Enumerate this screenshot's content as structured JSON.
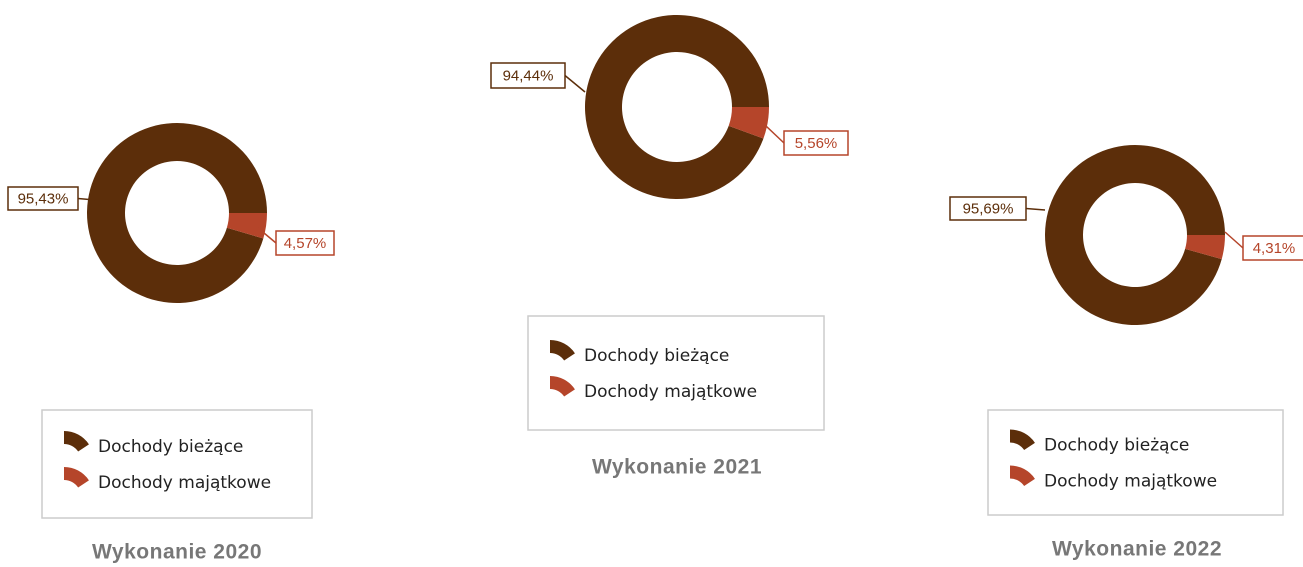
{
  "chart_data": [
    {
      "type": "donut",
      "title": "Wykonanie 2020",
      "categories": [
        "Dochody bieżące",
        "Dochody majątkowe"
      ],
      "values": [
        95.43,
        4.57
      ],
      "value_labels": [
        "95,43%",
        "4,57%"
      ],
      "colors": [
        "#5c2e0a",
        "#b5452a"
      ]
    },
    {
      "type": "donut",
      "title": "Wykonanie 2021",
      "categories": [
        "Dochody bieżące",
        "Dochody majątkowe"
      ],
      "values": [
        94.44,
        5.56
      ],
      "value_labels": [
        "94,44%",
        "5,56%"
      ],
      "colors": [
        "#5c2e0a",
        "#b5452a"
      ]
    },
    {
      "type": "donut",
      "title": "Wykonanie 2022",
      "categories": [
        "Dochody bieżące",
        "Dochody majątkowe"
      ],
      "values": [
        95.69,
        4.31
      ],
      "value_labels": [
        "95,69%",
        "4,31%"
      ],
      "colors": [
        "#5c2e0a",
        "#b5452a"
      ]
    }
  ]
}
